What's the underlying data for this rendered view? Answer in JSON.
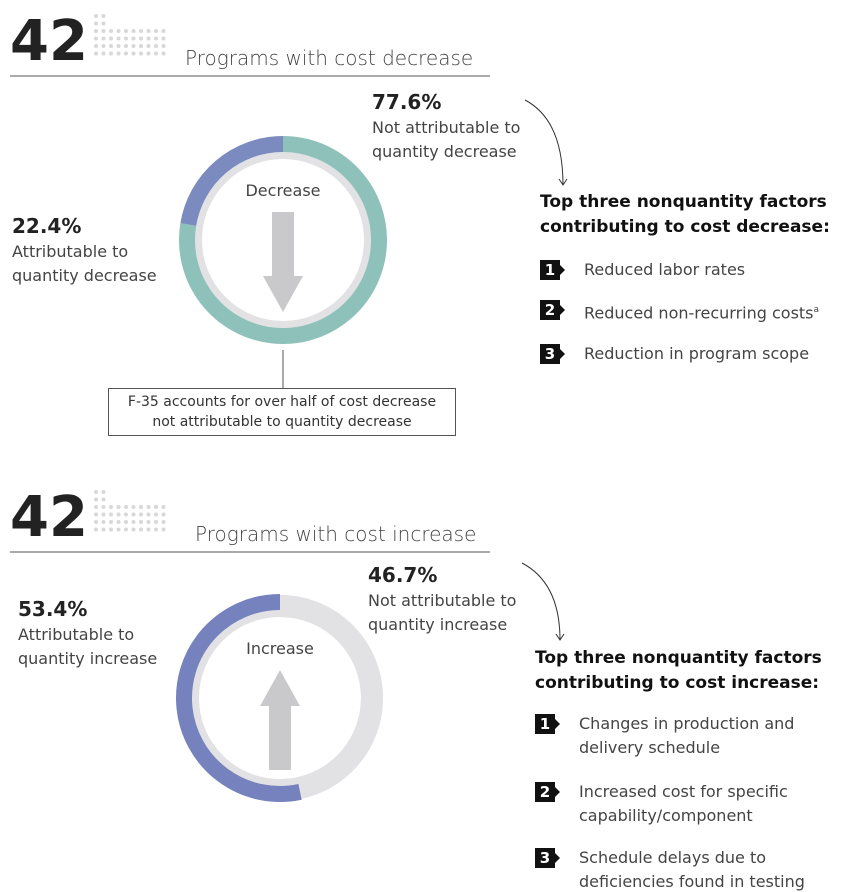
{
  "chart_data": [
    {
      "type": "donut",
      "count": 42,
      "title": "Programs with cost decrease",
      "center_label": "Decrease",
      "arrow": "down",
      "categories": [
        "Not attributable to quantity decrease",
        "Attributable to quantity decrease"
      ],
      "values": [
        77.6,
        22.4
      ],
      "value_labels": [
        "77.6%",
        "22.4%"
      ],
      "colors": [
        "#8fc1bb",
        "#7b8bc0"
      ],
      "ring_color": "#e2e2e4",
      "annotation": "F-35 accounts for over half of cost decrease not attributable to quantity decrease",
      "factors_title": "Top three nonquantity factors contributing to cost decrease:",
      "factors": [
        {
          "number": 1,
          "text": "Reduced labor rates"
        },
        {
          "number": 2,
          "text": "Reduced non-recurring costs",
          "note": "a"
        },
        {
          "number": 3,
          "text": "Reduction in program scope"
        }
      ]
    },
    {
      "type": "donut",
      "count": 42,
      "title": "Programs with cost increase",
      "center_label": "Increase",
      "arrow": "up",
      "categories": [
        "Not attributable to quantity increase",
        "Attributable to quantity increase"
      ],
      "values": [
        46.7,
        53.4
      ],
      "value_labels": [
        "46.7%",
        "53.4%"
      ],
      "colors": [
        "#e2e2e4",
        "#7682bd"
      ],
      "ring_color": "#e2e2e4",
      "factors_title": "Top three nonquantity factors contributing to cost increase:",
      "factors": [
        {
          "number": 1,
          "text": "Changes in production and delivery schedule"
        },
        {
          "number": 2,
          "text": "Increased cost for specific capability/component"
        },
        {
          "number": 3,
          "text": "Schedule delays due to deficiencies found in testing"
        }
      ]
    }
  ]
}
